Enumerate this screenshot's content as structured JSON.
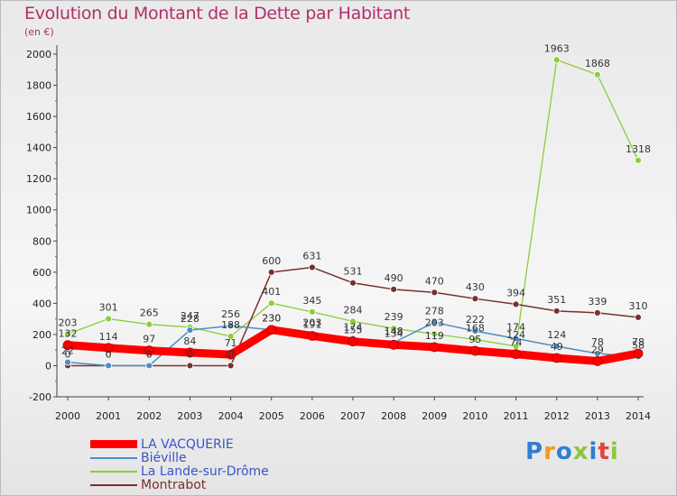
{
  "chart_data": {
    "type": "line",
    "title": "Evolution du Montant de la Dette par Habitant",
    "subtitle": "(en €)",
    "x": [
      "2000",
      "2001",
      "2002",
      "2003",
      "2004",
      "2005",
      "2006",
      "2007",
      "2008",
      "2009",
      "2010",
      "2011",
      "2012",
      "2013",
      "2014"
    ],
    "ylim": [
      -200,
      2000
    ],
    "yticks": [
      -200,
      0,
      200,
      400,
      600,
      800,
      1000,
      1200,
      1400,
      1600,
      1800,
      2000
    ],
    "grid": false,
    "legend_position": "bottom-left",
    "series": [
      {
        "name": "LA VACQUERIE",
        "color": "#ff0000",
        "values": [
          132,
          114,
          97,
          84,
          71,
          230,
          191,
          155,
          134,
          119,
          95,
          74,
          49,
          29,
          78
        ]
      },
      {
        "name": "Biéville",
        "color": "#4a8ec8",
        "values": [
          22,
          0,
          0,
          228,
          256,
          230,
          203,
          174,
          148,
          278,
          222,
          174,
          124,
          78,
          58
        ]
      },
      {
        "name": "La Lande-sur-Drôme",
        "color": "#8ccd3c",
        "values": [
          203,
          301,
          265,
          247,
          188,
          401,
          345,
          284,
          239,
          203,
          168,
          124,
          1963,
          1868,
          1318
        ]
      },
      {
        "name": "Montrabot",
        "color": "#7a2f2f",
        "values": [
          0,
          0,
          0,
          0,
          0,
          600,
          631,
          531,
          490,
          470,
          430,
          394,
          351,
          339,
          310
        ]
      }
    ],
    "labels": [
      [
        132,
        114,
        97,
        84,
        71,
        230,
        191,
        155,
        134,
        119,
        95,
        74,
        49,
        29,
        78
      ],
      [
        22,
        0,
        0,
        228,
        256,
        230,
        203,
        174,
        148,
        278,
        222,
        174,
        124,
        78,
        58
      ],
      [
        203,
        301,
        265,
        247,
        188,
        401,
        345,
        284,
        239,
        203,
        168,
        124,
        1963,
        1868,
        1318
      ],
      [
        0,
        0,
        0,
        0,
        0,
        600,
        631,
        531,
        490,
        470,
        430,
        394,
        351,
        339,
        310
      ]
    ]
  },
  "logo": {
    "text": "Proxiti"
  }
}
